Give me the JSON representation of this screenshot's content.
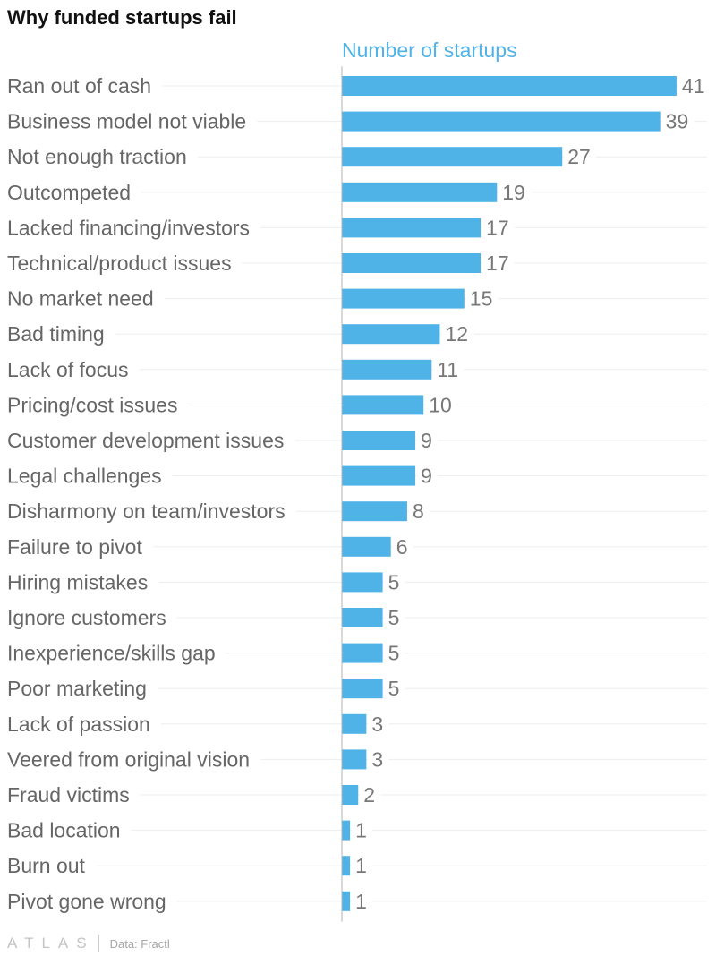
{
  "title": "Why funded startups fail",
  "footer": {
    "logo_text": "ATLAS",
    "source": "Data: Fractl"
  },
  "colors": {
    "bar": "#4fb3e8",
    "axis_title": "#4fb3e8",
    "category_label": "#666666",
    "value_label": "#777777",
    "gridline": "#eeeeee",
    "axis_line": "#b3b3b3"
  },
  "chart_data": {
    "type": "bar",
    "orientation": "horizontal",
    "title": "Why funded startups fail",
    "xlabel": "Number of startups",
    "ylabel": "",
    "xlim": [
      0,
      41
    ],
    "grid": true,
    "legend": "none",
    "categories": [
      "Ran out of cash",
      "Business model not viable",
      "Not enough traction",
      "Outcompeted",
      "Lacked financing/investors",
      "Technical/product issues",
      "No market need",
      "Bad timing",
      "Lack of focus",
      "Pricing/cost issues",
      "Customer development issues",
      "Legal challenges",
      "Disharmony on team/investors",
      "Failure to pivot",
      "Hiring mistakes",
      "Ignore customers",
      "Inexperience/skills gap",
      "Poor marketing",
      "Lack of passion",
      "Veered from original vision",
      "Fraud victims",
      "Bad location",
      "Burn out",
      "Pivot gone wrong"
    ],
    "values": [
      41,
      39,
      27,
      19,
      17,
      17,
      15,
      12,
      11,
      10,
      9,
      9,
      8,
      6,
      5,
      5,
      5,
      5,
      3,
      3,
      2,
      1,
      1,
      1
    ]
  }
}
